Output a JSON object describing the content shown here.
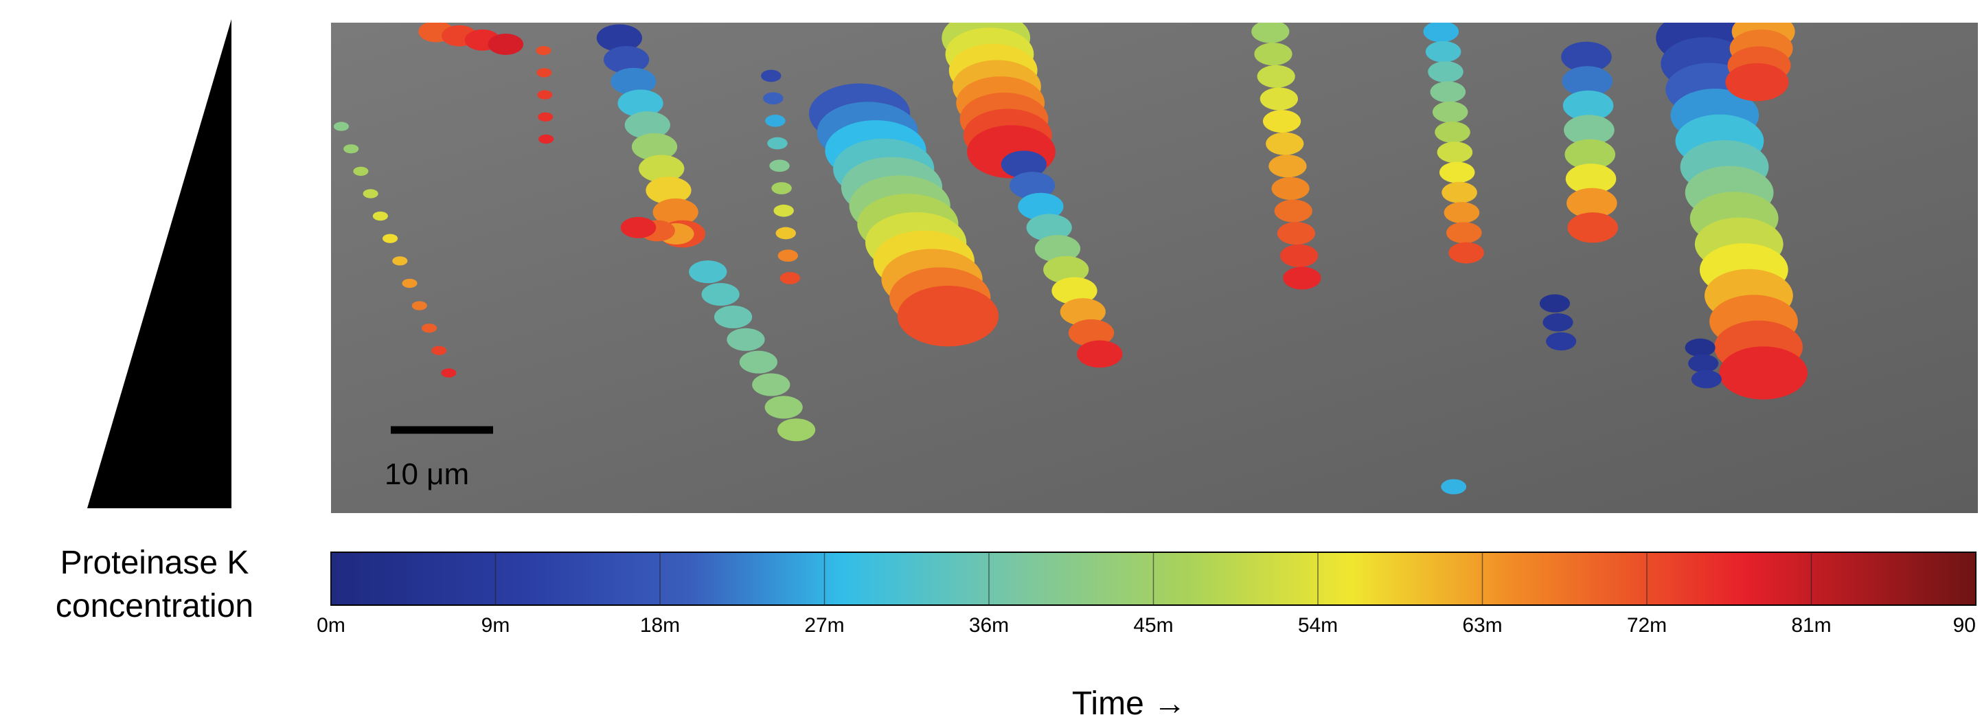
{
  "wedge": {
    "label_line1": "Proteinase K",
    "label_line2": "concentration"
  },
  "scale_bar": {
    "label": "10 μm"
  },
  "colorbar": {
    "lim": [
      0,
      90
    ],
    "ticks": [
      {
        "value": 0,
        "label": "0m"
      },
      {
        "value": 9,
        "label": "9m"
      },
      {
        "value": 18,
        "label": "18m"
      },
      {
        "value": 27,
        "label": "27m"
      },
      {
        "value": 36,
        "label": "36m"
      },
      {
        "value": 45,
        "label": "45m"
      },
      {
        "value": 54,
        "label": "54m"
      },
      {
        "value": 63,
        "label": "63m"
      },
      {
        "value": 72,
        "label": "72m"
      },
      {
        "value": 81,
        "label": "81m"
      },
      {
        "value": 90,
        "label": "90"
      }
    ]
  },
  "x_label": "Time →"
}
